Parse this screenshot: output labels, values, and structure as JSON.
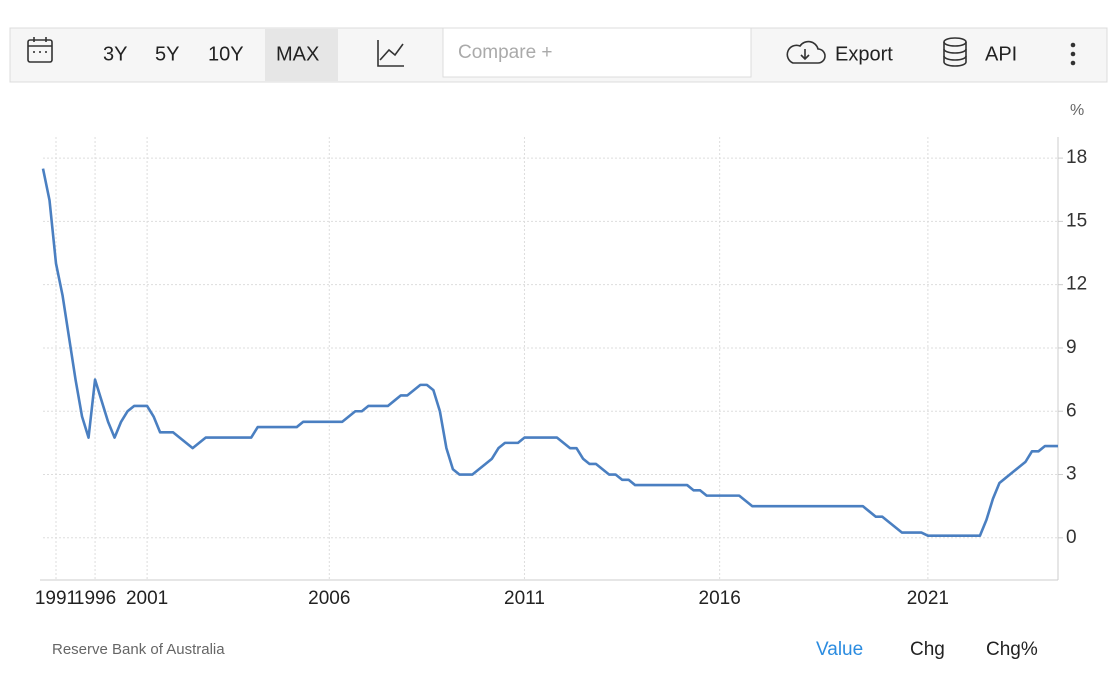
{
  "toolbar": {
    "ranges": [
      "3Y",
      "5Y",
      "10Y",
      "MAX"
    ],
    "compare": "Compare +",
    "export": "Export",
    "api": "API"
  },
  "chart_data": {
    "type": "line",
    "y_label": "%",
    "categories": [
      null,
      null,
      "1991",
      null,
      null,
      null,
      null,
      null,
      "1996",
      null,
      null,
      null,
      null,
      null,
      null,
      null,
      "2001",
      null,
      null,
      null,
      null,
      null,
      null,
      null,
      null,
      null,
      null,
      null,
      null,
      null,
      null,
      null,
      null,
      null,
      null,
      null,
      null,
      null,
      null,
      null,
      null,
      null,
      null,
      null,
      "2006",
      null,
      null,
      null,
      null,
      null,
      null,
      null,
      null,
      null,
      null,
      null,
      null,
      null,
      null,
      null,
      null,
      null,
      null,
      null,
      null,
      null,
      null,
      null,
      null,
      null,
      null,
      null,
      null,
      null,
      "2011",
      null,
      null,
      null,
      null,
      null,
      null,
      null,
      null,
      null,
      null,
      null,
      null,
      null,
      null,
      null,
      null,
      null,
      null,
      null,
      null,
      null,
      null,
      null,
      null,
      null,
      null,
      null,
      null,
      null,
      "2016",
      null,
      null,
      null,
      null,
      null,
      null,
      null,
      null,
      null,
      null,
      null,
      null,
      null,
      null,
      null,
      null,
      null,
      null,
      null,
      null,
      null,
      null,
      null,
      null,
      null,
      null,
      null,
      null,
      null,
      null,
      null,
      "2021",
      null,
      null,
      null,
      null,
      null,
      null,
      null,
      null,
      null,
      null,
      null,
      null,
      null,
      null,
      null,
      null,
      null,
      null,
      null,
      null
    ],
    "values": [
      17.5,
      16,
      13,
      11.5,
      9.5,
      7.5,
      5.75,
      4.75,
      7.5,
      6.5,
      5.5,
      4.75,
      5.5,
      6,
      6.25,
      6.25,
      6.25,
      5.75,
      5,
      5,
      5,
      4.75,
      4.5,
      4.25,
      4.5,
      4.75,
      4.75,
      4.75,
      4.75,
      4.75,
      4.75,
      4.75,
      4.75,
      5.25,
      5.25,
      5.25,
      5.25,
      5.25,
      5.25,
      5.25,
      5.5,
      5.5,
      5.5,
      5.5,
      5.5,
      5.5,
      5.5,
      5.75,
      6,
      6,
      6.25,
      6.25,
      6.25,
      6.25,
      6.5,
      6.75,
      6.75,
      7,
      7.25,
      7.25,
      7,
      6,
      4.25,
      3.25,
      3,
      3,
      3,
      3.25,
      3.5,
      3.75,
      4.25,
      4.5,
      4.5,
      4.5,
      4.75,
      4.75,
      4.75,
      4.75,
      4.75,
      4.75,
      4.5,
      4.25,
      4.25,
      3.75,
      3.5,
      3.5,
      3.25,
      3,
      3,
      2.75,
      2.75,
      2.5,
      2.5,
      2.5,
      2.5,
      2.5,
      2.5,
      2.5,
      2.5,
      2.5,
      2.25,
      2.25,
      2,
      2,
      2,
      2,
      2,
      2,
      1.75,
      1.5,
      1.5,
      1.5,
      1.5,
      1.5,
      1.5,
      1.5,
      1.5,
      1.5,
      1.5,
      1.5,
      1.5,
      1.5,
      1.5,
      1.5,
      1.5,
      1.5,
      1.5,
      1.25,
      1,
      1,
      0.75,
      0.5,
      0.25,
      0.25,
      0.25,
      0.25,
      0.1,
      0.1,
      0.1,
      0.1,
      0.1,
      0.1,
      0.1,
      0.1,
      0.1,
      0.85,
      1.85,
      2.6,
      2.85,
      3.1,
      3.35,
      3.6,
      4.1,
      4.1,
      4.35,
      4.35,
      4.35
    ],
    "color": "#4a7fc1",
    "ylim": [
      -2,
      19
    ],
    "yticks": [
      0,
      3,
      6,
      9,
      12,
      15,
      18
    ],
    "grid": true
  },
  "footer": {
    "source": "Reserve Bank of Australia",
    "tabs": [
      "Value",
      "Chg",
      "Chg%"
    ]
  }
}
